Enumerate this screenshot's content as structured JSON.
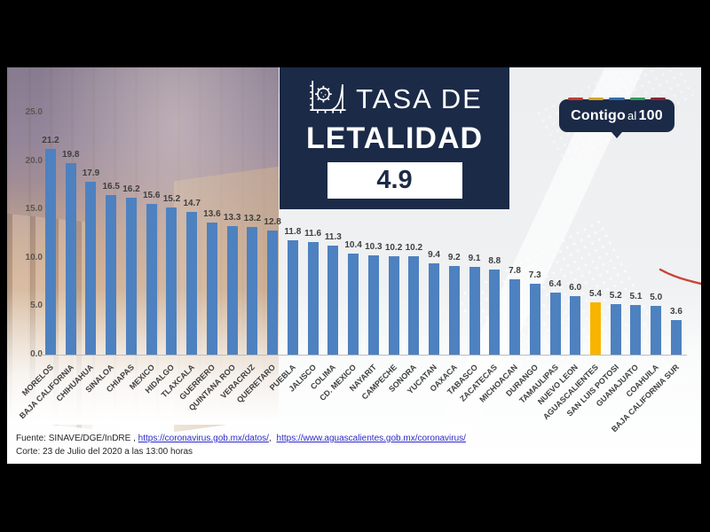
{
  "title": {
    "prefix": "TASA DE",
    "main": "LETALIDAD",
    "value": "4.9"
  },
  "logo": {
    "part1": "Contigo",
    "part2": "al",
    "part3": "100",
    "dash_colors": [
      "#c43b2f",
      "#d9a421",
      "#2f6fae",
      "#2f9e55",
      "#8c2430"
    ]
  },
  "colors": {
    "bar": "#4e81c0",
    "highlight": "#f7b500",
    "navy": "#1b2a47",
    "annotation": "#c94438"
  },
  "chart_data": {
    "type": "bar",
    "title": "TASA DE LETALIDAD",
    "national_value": 4.9,
    "categories": [
      "MORELOS",
      "BAJA CALIFORNIA",
      "CHIHUAHUA",
      "SINALOA",
      "CHIAPAS",
      "MEXICO",
      "HIDALGO",
      "TLAXCALA",
      "GUERRERO",
      "QUINTANA ROO",
      "VERACRUZ",
      "QUERETARO",
      "PUEBLA",
      "JALISCO",
      "COLIMA",
      "CD. MEXICO",
      "NAYARIT",
      "CAMPECHE",
      "SONORA",
      "YUCATAN",
      "OAXACA",
      "TABASCO",
      "ZACATECAS",
      "MICHOACAN",
      "DURANGO",
      "TAMAULIPAS",
      "NUEVO LEON",
      "AGUASCALIENTES",
      "SAN LUIS POTOSI",
      "GUANAJUATO",
      "COAHUILA",
      "BAJA CALIFORNIA SUR"
    ],
    "values": [
      21.2,
      19.8,
      17.9,
      16.5,
      16.2,
      15.6,
      15.2,
      14.7,
      13.6,
      13.3,
      13.2,
      12.8,
      11.8,
      11.6,
      11.3,
      10.4,
      10.3,
      10.2,
      10.2,
      9.4,
      9.2,
      9.1,
      8.8,
      7.8,
      7.3,
      6.4,
      6.0,
      5.4,
      5.2,
      5.1,
      5.0,
      3.6
    ],
    "highlight_category": "AGUASCALIENTES",
    "ylim": [
      0,
      25
    ],
    "yticks": [
      "25.0",
      "20.0",
      "15.0",
      "10.0",
      "5.0",
      "0.0"
    ],
    "value_labels_shown": true,
    "legend": "none",
    "gridlines": "none"
  },
  "footer": {
    "fuente_label": "Fuente: SINAVE/DGE/InDRE ,",
    "link1": "https://coronavirus.gob.mx/datos/",
    "sep": ",",
    "link2": "https://www.aguascalientes.gob.mx/coronavirus/",
    "corte": "Corte: 23 de Julio del 2020 a las 13:00 horas"
  }
}
